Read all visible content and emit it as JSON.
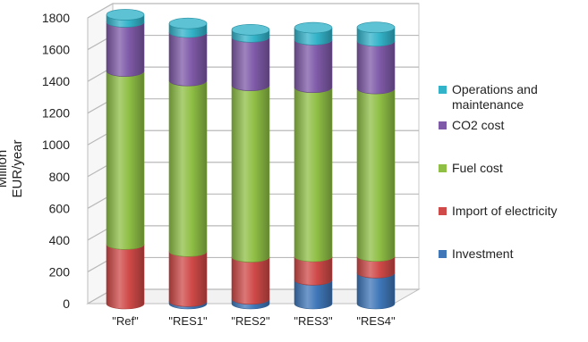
{
  "chart_data": {
    "type": "bar",
    "stacked": true,
    "title": "",
    "xlabel": "",
    "ylabel": "Million EUR/year",
    "ylim": [
      0,
      1800
    ],
    "yticks": [
      0,
      200,
      400,
      600,
      800,
      1000,
      1200,
      1400,
      1600,
      1800
    ],
    "grid": true,
    "legend_position": "right",
    "categories": [
      "\"Ref\"",
      "\"RES1\"",
      "\"RES2\"",
      "\"RES3\"",
      "\"RES4\""
    ],
    "series": [
      {
        "name": "Investment",
        "color": "#3f77b8",
        "values": [
          0,
          15,
          30,
          150,
          195
        ]
      },
      {
        "name": "Import of electricity",
        "color": "#cf4a48",
        "values": [
          375,
          315,
          265,
          148,
          105
        ]
      },
      {
        "name": "Fuel cost",
        "color": "#8fbf45",
        "values": [
          1090,
          1075,
          1080,
          1065,
          1055
        ]
      },
      {
        "name": "CO2 cost",
        "color": "#7f5aa8",
        "values": [
          310,
          305,
          305,
          300,
          300
        ]
      },
      {
        "name": "Operations and maintenance",
        "color": "#33b3c9",
        "values": [
          45,
          55,
          45,
          75,
          85
        ]
      }
    ],
    "legend_order": [
      4,
      3,
      2,
      1,
      0
    ]
  }
}
